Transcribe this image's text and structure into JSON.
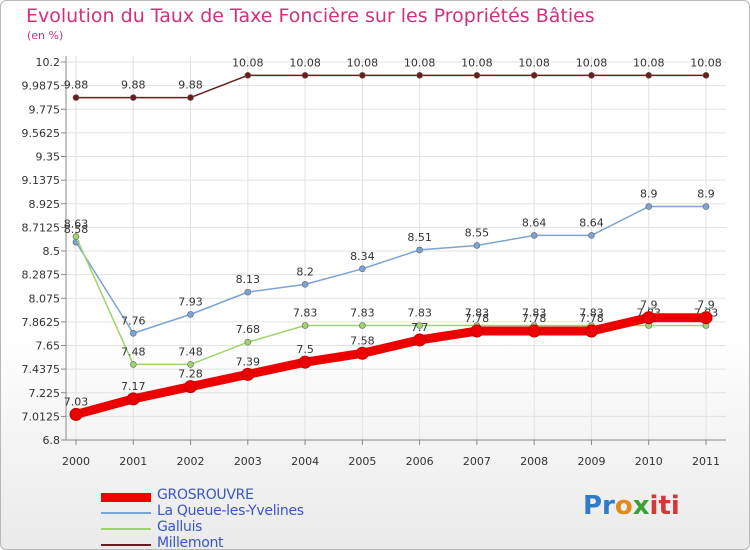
{
  "title": "Evolution du Taux de Taxe Foncière sur les Propriétés Bâties",
  "subtitle": "(en %)",
  "logo_parts": [
    "Pr",
    "o",
    "x",
    "iti"
  ],
  "chart_data": {
    "type": "line",
    "title": "Evolution du Taux de Taxe Foncière sur les Propriétés Bâties",
    "ylabel": "(en %)",
    "xlabel": "",
    "categories": [
      "2000",
      "2001",
      "2002",
      "2003",
      "2004",
      "2005",
      "2006",
      "2007",
      "2008",
      "2009",
      "2010",
      "2011"
    ],
    "ylim": [
      6.8,
      10.2
    ],
    "y_ticks": [
      "6.8",
      "7.0125",
      "7.225",
      "7.4375",
      "7.65",
      "7.8625",
      "8.075",
      "8.2875",
      "8.5",
      "8.7125",
      "8.925",
      "9.1375",
      "9.35",
      "9.5625",
      "9.775",
      "9.9875",
      "10.2"
    ],
    "grid": true,
    "series": [
      {
        "name": "Millemont",
        "color": "#6b1c1c",
        "values": [
          9.88,
          9.88,
          9.88,
          10.08,
          10.08,
          10.08,
          10.08,
          10.08,
          10.08,
          10.08,
          10.08,
          10.08
        ],
        "labels": [
          "9.88",
          "9.88",
          "9.88",
          "10.08",
          "10.08",
          "10.08",
          "10.08",
          "10.08",
          "10.08",
          "10.08",
          "10.08",
          "10.08"
        ]
      },
      {
        "name": "La Queue-les-Yvelines",
        "color": "#7aa3d6",
        "values": [
          8.58,
          7.76,
          7.93,
          8.13,
          8.2,
          8.34,
          8.51,
          8.55,
          8.64,
          8.64,
          8.9,
          8.9
        ],
        "labels": [
          "8.58",
          "7.76",
          "7.93",
          "8.13",
          "8.2",
          "8.34",
          "8.51",
          "8.55",
          "8.64",
          "8.64",
          "8.9",
          "8.9"
        ]
      },
      {
        "name": "Galluis",
        "color": "#9ed46a",
        "values": [
          8.63,
          7.48,
          7.48,
          7.68,
          7.83,
          7.83,
          7.83,
          7.83,
          7.83,
          7.83,
          7.83,
          7.83
        ],
        "labels": [
          "8.63",
          "7.48",
          "7.48",
          "7.68",
          "7.83",
          "7.83",
          "7.83",
          "7.83",
          "7.83",
          "7.83",
          "7.83",
          "7.83"
        ]
      },
      {
        "name": "GROSROUVRE",
        "color": "#ee0000",
        "values": [
          7.03,
          7.17,
          7.28,
          7.39,
          7.5,
          7.58,
          7.7,
          7.78,
          7.78,
          7.78,
          7.9,
          7.9
        ],
        "labels": [
          "7.03",
          "7.17",
          "7.28",
          "7.39",
          "7.5",
          "7.58",
          "7.7",
          "7.78",
          "7.78",
          "7.78",
          "7.9",
          "7.9"
        ]
      }
    ],
    "legend": [
      {
        "name": "GROSROUVRE",
        "color": "#ee0000"
      },
      {
        "name": "La Queue-les-Yvelines",
        "color": "#7aa3d6"
      },
      {
        "name": "Galluis",
        "color": "#9ed46a"
      },
      {
        "name": "Millemont",
        "color": "#6b1c1c"
      }
    ],
    "legend_position": "bottom-left"
  }
}
